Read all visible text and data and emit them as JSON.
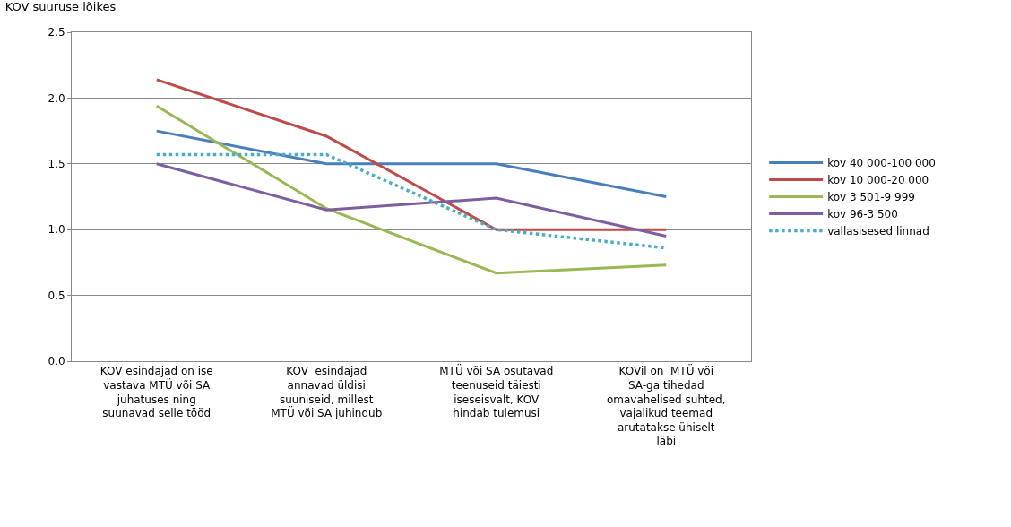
{
  "chart_data": {
    "type": "line",
    "title": "KOV suuruse lõikes",
    "categories": [
      "KOV esindajad on ise vastava MTÜ või SA juhatuses ning suunavad selle tööd",
      "KOV  esindajad annavad üldisi suuniseid, millest MTÜ või SA juhindub",
      "MTÜ või SA osutavad teenuseid täiesti iseseisvalt, KOV hindab tulemusi",
      "KOVil on  MTÜ või SA-ga tihedad omavahelised suhted, vajalikud teemad arutatakse ühiselt läbi"
    ],
    "series": [
      {
        "name": "kov 40 000-100 000",
        "color": "#4a7ebb",
        "values": [
          1.75,
          1.5,
          1.5,
          1.25
        ]
      },
      {
        "name": "kov 10 000-20 000",
        "color": "#be4b48",
        "values": [
          2.14,
          1.71,
          1.0,
          1.0
        ]
      },
      {
        "name": "kov 3 501-9 999",
        "color": "#98b954",
        "values": [
          1.94,
          1.16,
          0.67,
          0.73
        ]
      },
      {
        "name": "kov 96-3 500",
        "color": "#7d5fa0",
        "values": [
          1.5,
          1.15,
          1.24,
          0.95
        ]
      },
      {
        "name": "vallasisesed linnad",
        "color": "#4bacc6",
        "values": [
          1.57,
          1.57,
          1.0,
          0.86
        ],
        "line_style": "dotted"
      }
    ],
    "ylim": [
      0,
      2.5
    ],
    "yticks": [
      {
        "value": 0,
        "label": "0.0"
      },
      {
        "value": 0.5,
        "label": "0.5"
      },
      {
        "value": 1,
        "label": "1.0"
      },
      {
        "value": 1.5,
        "label": "1.5"
      },
      {
        "value": 2,
        "label": "2.0"
      },
      {
        "value": 2.5,
        "label": "2.5"
      }
    ],
    "grid": "y",
    "legend": "right",
    "marker": "none",
    "line_style": "solid"
  }
}
